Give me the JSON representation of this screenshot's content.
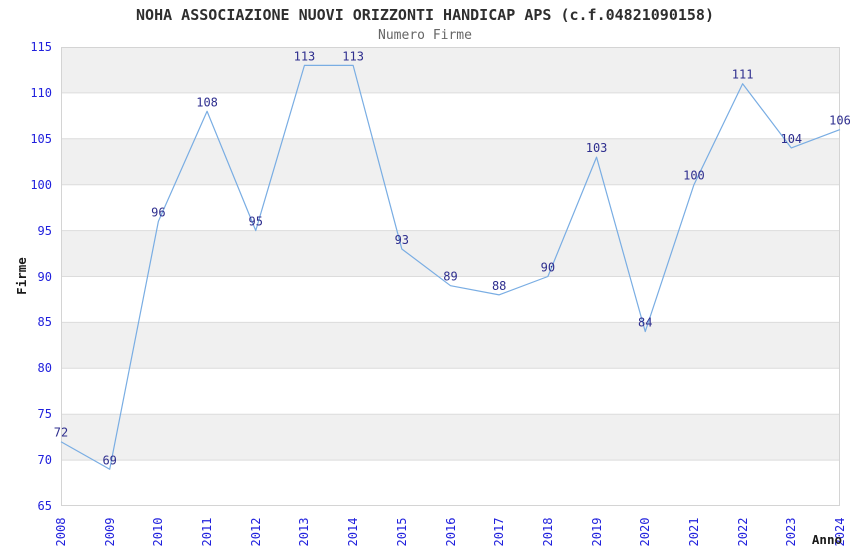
{
  "chart_data": {
    "type": "line",
    "title": "NOHA ASSOCIAZIONE NUOVI ORIZZONTI HANDICAP APS (c.f.04821090158)",
    "subtitle": "Numero Firme",
    "xlabel": "Anno",
    "ylabel": "Firme",
    "x": [
      2008,
      2009,
      2010,
      2011,
      2012,
      2013,
      2014,
      2015,
      2016,
      2017,
      2018,
      2019,
      2020,
      2021,
      2022,
      2023,
      2024
    ],
    "values": [
      72,
      69,
      96,
      108,
      95,
      113,
      113,
      93,
      89,
      88,
      90,
      103,
      84,
      100,
      111,
      104,
      106
    ],
    "ylim": [
      65,
      115
    ],
    "ytick_step": 5,
    "grid": "horizontal",
    "background_bands": "alternating",
    "legend": "none",
    "data_labels": true,
    "colors": {
      "line": "#79ade3",
      "tick_label": "#2121dd",
      "data_label": "#2e2e8e",
      "band": "#f0f0f0",
      "gridline": "#dcdcdc",
      "plot_border": "#d4d4d4",
      "title": "#2e2e2e",
      "subtitle": "#666666",
      "axis_label": "#1a1a1a"
    }
  }
}
